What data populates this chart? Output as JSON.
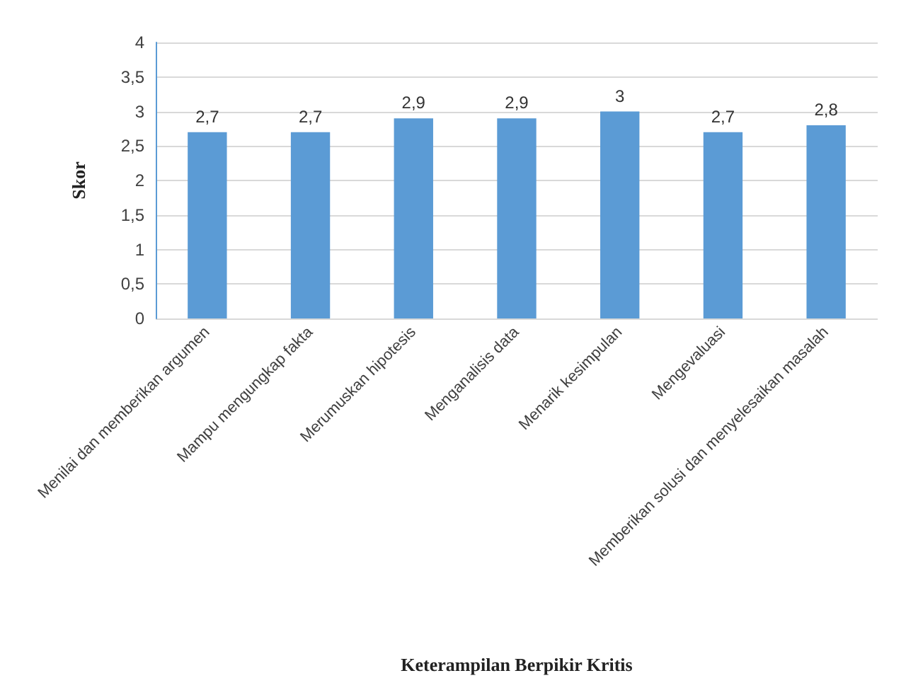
{
  "chart_data": {
    "type": "bar",
    "xlabel": "Keterampilan Berpikir Kritis",
    "ylabel": "Skor",
    "categories": [
      "Menilai dan memberikan argumen",
      "Mampu mengungkap fakta",
      "Merumuskan hipotesis",
      "Menganalisis data",
      "Menarik kesimpulan",
      "Mengevaluasi",
      "Memberikan solusi dan menyelesaikan masalah"
    ],
    "values": [
      2.7,
      2.7,
      2.9,
      2.9,
      3,
      2.7,
      2.8
    ],
    "value_labels": [
      "2,7",
      "2,7",
      "2,9",
      "2,9",
      "3",
      "2,7",
      "2,8"
    ],
    "color": "#5b9bd5",
    "ylim": [
      0,
      4
    ],
    "yticks": [
      0,
      {
        "value": 0.5,
        "label": "0,5"
      },
      1,
      {
        "value": 1.5,
        "label": "1,5"
      },
      2,
      {
        "value": 2.5,
        "label": "2,5"
      },
      3,
      {
        "value": 3.5,
        "label": "3,5"
      },
      4
    ],
    "grid": "y"
  }
}
